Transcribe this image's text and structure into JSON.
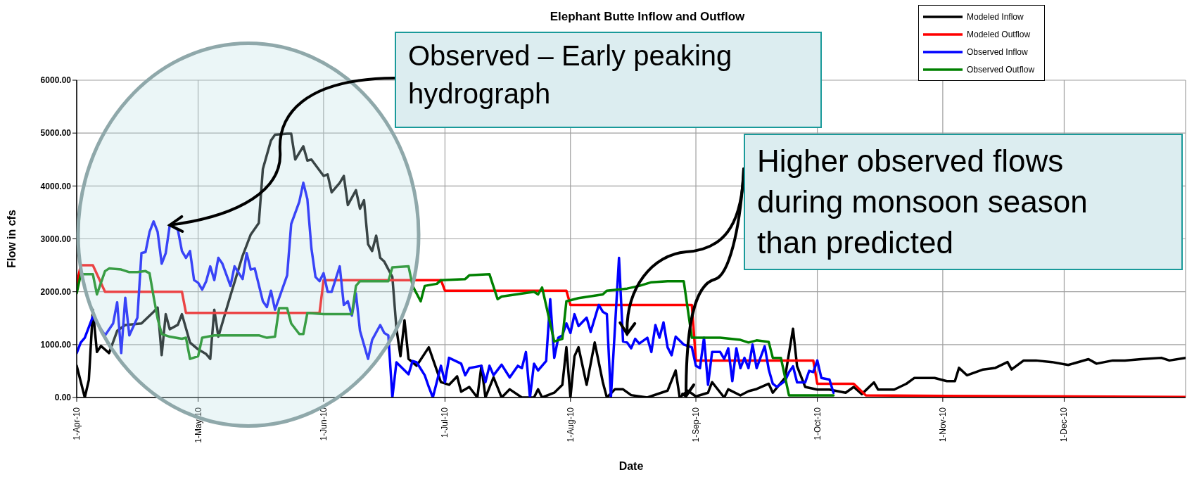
{
  "chart_data": {
    "type": "line",
    "title": "Elephant Butte Inflow and Outflow",
    "xlabel": "Date",
    "ylabel": "Flow in cfs",
    "xlim": [
      "2010-04-01",
      "2010-12-31"
    ],
    "xticks": [
      {
        "value": "2010-04-01",
        "label": "1-Apr-10"
      },
      {
        "value": "2010-05-01",
        "label": "1-May-10"
      },
      {
        "value": "2010-06-01",
        "label": "1-Jun-10"
      },
      {
        "value": "2010-07-01",
        "label": "1-Jul-10"
      },
      {
        "value": "2010-08-01",
        "label": "1-Aug-10"
      },
      {
        "value": "2010-09-01",
        "label": "1-Sep-10"
      },
      {
        "value": "2010-10-01",
        "label": "1-Oct-10"
      },
      {
        "value": "2010-11-01",
        "label": "1-Nov-10"
      },
      {
        "value": "2010-12-01",
        "label": "1-Dec-10"
      }
    ],
    "ylim": [
      0,
      6000
    ],
    "yticks": [
      {
        "value": 0,
        "label": "0.00"
      },
      {
        "value": 1000,
        "label": "1000.00"
      },
      {
        "value": 2000,
        "label": "2000.00"
      },
      {
        "value": 3000,
        "label": "3000.00"
      },
      {
        "value": 4000,
        "label": "4000.00"
      },
      {
        "value": 5000,
        "label": "5000.00"
      },
      {
        "value": 6000,
        "label": "6000.00"
      }
    ],
    "grid": true,
    "legend": "top right",
    "line_style": "solid",
    "marker": "none",
    "annotations": [
      {
        "text": "Observed – Early peaking hydrograph",
        "x": "2010-04-24",
        "y": 3260
      },
      {
        "text": "Higher observed flows during monsoon season than predicted",
        "x": "2010-08-15",
        "y": 1200
      }
    ],
    "series": [
      {
        "name": "Modeled Inflow",
        "color": "#000000",
        "x": [
          "2010-04-01",
          "2010-04-03",
          "2010-04-04",
          "2010-04-05",
          "2010-04-06",
          "2010-04-07",
          "2010-04-09",
          "2010-04-11",
          "2010-04-13",
          "2010-04-17",
          "2010-04-20",
          "2010-04-21",
          "2010-04-22",
          "2010-04-23",
          "2010-04-24",
          "2010-04-26",
          "2010-04-27",
          "2010-04-29",
          "2010-05-01",
          "2010-05-03",
          "2010-05-04",
          "2010-05-05",
          "2010-05-06",
          "2010-05-09",
          "2010-05-12",
          "2010-05-14",
          "2010-05-16",
          "2010-05-17",
          "2010-05-19",
          "2010-05-20",
          "2010-05-23",
          "2010-05-24",
          "2010-05-25",
          "2010-05-27",
          "2010-05-28",
          "2010-05-29",
          "2010-06-01",
          "2010-06-02",
          "2010-06-03",
          "2010-06-05",
          "2010-06-06",
          "2010-06-07",
          "2010-06-09",
          "2010-06-10",
          "2010-06-11",
          "2010-06-12",
          "2010-06-13",
          "2010-06-14",
          "2010-06-15",
          "2010-06-16",
          "2010-06-18",
          "2010-06-19",
          "2010-06-20",
          "2010-06-21",
          "2010-06-22",
          "2010-06-24",
          "2010-06-27",
          "2010-06-30",
          "2010-07-02",
          "2010-07-04",
          "2010-07-05",
          "2010-07-07",
          "2010-07-09",
          "2010-07-10",
          "2010-07-11",
          "2010-07-13",
          "2010-07-15",
          "2010-07-17",
          "2010-07-20",
          "2010-07-23",
          "2010-07-24",
          "2010-07-25",
          "2010-07-28",
          "2010-07-30",
          "2010-07-31",
          "2010-08-01",
          "2010-08-02",
          "2010-08-03",
          "2010-08-05",
          "2010-08-07",
          "2010-08-09",
          "2010-08-10",
          "2010-08-12",
          "2010-08-14",
          "2010-08-16",
          "2010-08-20",
          "2010-08-25",
          "2010-08-27",
          "2010-08-28",
          "2010-08-30",
          "2010-09-01",
          "2010-09-04",
          "2010-09-05",
          "2010-09-08",
          "2010-09-09",
          "2010-09-12",
          "2010-09-14",
          "2010-09-16",
          "2010-09-19",
          "2010-09-20",
          "2010-09-23",
          "2010-09-25",
          "2010-09-26",
          "2010-09-28",
          "2010-10-01",
          "2010-10-04",
          "2010-10-08",
          "2010-10-10",
          "2010-10-12",
          "2010-10-15",
          "2010-10-16",
          "2010-10-20",
          "2010-10-23",
          "2010-10-25",
          "2010-10-30",
          "2010-11-02",
          "2010-11-04",
          "2010-11-05",
          "2010-11-07",
          "2010-11-11",
          "2010-11-14",
          "2010-11-17",
          "2010-11-18",
          "2010-11-21",
          "2010-11-24",
          "2010-11-28",
          "2010-12-02",
          "2010-12-07",
          "2010-12-09",
          "2010-12-13",
          "2010-12-16",
          "2010-12-20",
          "2010-12-25",
          "2010-12-27",
          "2010-12-31"
        ],
        "values": [
          600,
          0,
          330,
          1660,
          860,
          975,
          840,
          1260,
          1370,
          1400,
          1620,
          1700,
          800,
          1575,
          1290,
          1375,
          1575,
          1040,
          910,
          820,
          730,
          1660,
          1150,
          1930,
          2680,
          3080,
          3300,
          4320,
          4860,
          4970,
          4990,
          4990,
          4500,
          4750,
          4480,
          4500,
          4190,
          4220,
          3880,
          4060,
          4190,
          3640,
          3920,
          3570,
          3730,
          2900,
          2770,
          3060,
          2640,
          2570,
          2280,
          1310,
          780,
          1460,
          730,
          600,
          950,
          290,
          240,
          400,
          110,
          200,
          0,
          600,
          0,
          380,
          0,
          155,
          0,
          0,
          155,
          0,
          90,
          240,
          950,
          0,
          780,
          950,
          240,
          1040,
          290,
          0,
          155,
          155,
          45,
          0,
          130,
          510,
          0,
          130,
          20,
          90,
          290,
          0,
          155,
          40,
          120,
          160,
          260,
          90,
          370,
          1300,
          590,
          200,
          150,
          150,
          90,
          200,
          65,
          285,
          150,
          150,
          260,
          370,
          370,
          310,
          310,
          560,
          420,
          530,
          560,
          670,
          530,
          700,
          700,
          670,
          615,
          725,
          640,
          700,
          700,
          725,
          750,
          700,
          750
        ]
      },
      {
        "name": "Modeled Outflow",
        "color": "#ff0000",
        "x": [
          "2010-04-01",
          "2010-04-02",
          "2010-04-05",
          "2010-04-08",
          "2010-04-27",
          "2010-04-28",
          "2010-05-31",
          "2010-06-01",
          "2010-06-30",
          "2010-07-01",
          "2010-07-31",
          "2010-08-01",
          "2010-08-31",
          "2010-09-01",
          "2010-09-30",
          "2010-10-01",
          "2010-10-10",
          "2010-10-13",
          "2010-11-02",
          "2010-12-31"
        ],
        "values": [
          2130,
          2500,
          2500,
          2000,
          2000,
          1600,
          1600,
          2220,
          2220,
          2020,
          2020,
          1750,
          1750,
          700,
          700,
          260,
          260,
          40,
          30,
          10
        ]
      },
      {
        "name": "Observed Inflow",
        "color": "#0000ff",
        "x": [
          "2010-04-01",
          "2010-04-02",
          "2010-04-03",
          "2010-04-05",
          "2010-04-08",
          "2010-04-10",
          "2010-04-11",
          "2010-04-12",
          "2010-04-13",
          "2010-04-14",
          "2010-04-16",
          "2010-04-17",
          "2010-04-18",
          "2010-04-19",
          "2010-04-20",
          "2010-04-21",
          "2010-04-22",
          "2010-04-23",
          "2010-04-24",
          "2010-04-25",
          "2010-04-26",
          "2010-04-27",
          "2010-04-28",
          "2010-04-29",
          "2010-04-30",
          "2010-05-01",
          "2010-05-02",
          "2010-05-03",
          "2010-05-04",
          "2010-05-05",
          "2010-05-06",
          "2010-05-07",
          "2010-05-09",
          "2010-05-10",
          "2010-05-12",
          "2010-05-13",
          "2010-05-14",
          "2010-05-15",
          "2010-05-17",
          "2010-05-18",
          "2010-05-19",
          "2010-05-20",
          "2010-05-23",
          "2010-05-24",
          "2010-05-26",
          "2010-05-27",
          "2010-05-28",
          "2010-05-29",
          "2010-05-30",
          "2010-05-31",
          "2010-06-01",
          "2010-06-02",
          "2010-06-03",
          "2010-06-05",
          "2010-06-06",
          "2010-06-07",
          "2010-06-08",
          "2010-06-09",
          "2010-06-10",
          "2010-06-12",
          "2010-06-13",
          "2010-06-15",
          "2010-06-16",
          "2010-06-17",
          "2010-06-18",
          "2010-06-19",
          "2010-06-22",
          "2010-06-23",
          "2010-06-24",
          "2010-06-26",
          "2010-06-27",
          "2010-06-28",
          "2010-06-30",
          "2010-07-01",
          "2010-07-02",
          "2010-07-05",
          "2010-07-06",
          "2010-07-07",
          "2010-07-10",
          "2010-07-11",
          "2010-07-12",
          "2010-07-13",
          "2010-07-15",
          "2010-07-17",
          "2010-07-19",
          "2010-07-20",
          "2010-07-21",
          "2010-07-22",
          "2010-07-23",
          "2010-07-24",
          "2010-07-26",
          "2010-07-27",
          "2010-07-28",
          "2010-07-29",
          "2010-07-30",
          "2010-07-31",
          "2010-08-01",
          "2010-08-02",
          "2010-08-03",
          "2010-08-05",
          "2010-08-06",
          "2010-08-08",
          "2010-08-09",
          "2010-08-10",
          "2010-08-11",
          "2010-08-13",
          "2010-08-14",
          "2010-08-15",
          "2010-08-16",
          "2010-08-17",
          "2010-08-18",
          "2010-08-20",
          "2010-08-21",
          "2010-08-22",
          "2010-08-23",
          "2010-08-24",
          "2010-08-25",
          "2010-08-26",
          "2010-08-27",
          "2010-08-29",
          "2010-08-31",
          "2010-09-01",
          "2010-09-02",
          "2010-09-03",
          "2010-09-04",
          "2010-09-05",
          "2010-09-07",
          "2010-09-08",
          "2010-09-09",
          "2010-09-10",
          "2010-09-11",
          "2010-09-12",
          "2010-09-13",
          "2010-09-14",
          "2010-09-15",
          "2010-09-16",
          "2010-09-18",
          "2010-09-19",
          "2010-09-20",
          "2010-09-21",
          "2010-09-23",
          "2010-09-24",
          "2010-09-25",
          "2010-09-26",
          "2010-09-28",
          "2010-09-29",
          "2010-09-30",
          "2010-10-01",
          "2010-10-02",
          "2010-10-04",
          "2010-10-05"
        ],
        "values": [
          840,
          1040,
          1130,
          1530,
          1175,
          1400,
          1800,
          840,
          1885,
          1175,
          1510,
          2730,
          2750,
          3130,
          3330,
          3130,
          2530,
          2730,
          3260,
          3220,
          3170,
          2770,
          2640,
          2770,
          2220,
          2170,
          2040,
          2200,
          2480,
          2220,
          2640,
          2530,
          2110,
          2480,
          2240,
          2730,
          2420,
          2440,
          1820,
          1710,
          2020,
          1660,
          2310,
          3280,
          3700,
          4060,
          3750,
          2820,
          2280,
          2200,
          2350,
          2000,
          2000,
          2480,
          1750,
          1820,
          1550,
          1970,
          1260,
          730,
          1090,
          1370,
          1220,
          1175,
          0,
          665,
          440,
          690,
          665,
          420,
          200,
          0,
          600,
          290,
          750,
          640,
          420,
          555,
          600,
          290,
          600,
          420,
          620,
          380,
          600,
          555,
          860,
          0,
          640,
          510,
          690,
          1860,
          750,
          1130,
          1175,
          1400,
          1220,
          1575,
          1350,
          1510,
          1240,
          1750,
          1620,
          1575,
          0,
          2640,
          1060,
          1040,
          930,
          1110,
          1020,
          1130,
          860,
          1370,
          1130,
          1420,
          950,
          800,
          1150,
          1000,
          950,
          600,
          555,
          1130,
          240,
          860,
          860,
          730,
          930,
          310,
          930,
          555,
          750,
          555,
          1000,
          555,
          970,
          530,
          260,
          200,
          310,
          480,
          590,
          285,
          285,
          505,
          480,
          700,
          370,
          340,
          90
        ]
      },
      {
        "name": "Observed Outflow",
        "color": "#008000",
        "x": [
          "2010-04-01",
          "2010-04-02",
          "2010-04-05",
          "2010-04-06",
          "2010-04-08",
          "2010-04-09",
          "2010-04-12",
          "2010-04-14",
          "2010-04-16",
          "2010-04-18",
          "2010-04-19",
          "2010-04-20",
          "2010-04-21",
          "2010-04-22",
          "2010-04-24",
          "2010-04-27",
          "2010-04-28",
          "2010-04-29",
          "2010-05-01",
          "2010-05-02",
          "2010-05-05",
          "2010-05-10",
          "2010-05-16",
          "2010-05-18",
          "2010-05-20",
          "2010-05-21",
          "2010-05-23",
          "2010-05-24",
          "2010-05-26",
          "2010-05-27",
          "2010-05-28",
          "2010-06-01",
          "2010-06-05",
          "2010-06-08",
          "2010-06-09",
          "2010-06-10",
          "2010-06-17",
          "2010-06-18",
          "2010-06-22",
          "2010-06-23",
          "2010-06-25",
          "2010-06-26",
          "2010-06-29",
          "2010-06-30",
          "2010-07-06",
          "2010-07-07",
          "2010-07-12",
          "2010-07-14",
          "2010-07-15",
          "2010-07-23",
          "2010-07-24",
          "2010-07-25",
          "2010-07-28",
          "2010-07-30",
          "2010-07-31",
          "2010-08-03",
          "2010-08-09",
          "2010-08-10",
          "2010-08-15",
          "2010-08-18",
          "2010-08-21",
          "2010-08-25",
          "2010-08-29",
          "2010-08-31",
          "2010-09-07",
          "2010-09-12",
          "2010-09-14",
          "2010-09-16",
          "2010-09-19",
          "2010-09-20",
          "2010-09-22",
          "2010-09-24",
          "2010-10-01",
          "2010-10-05"
        ],
        "values": [
          1970,
          2330,
          2330,
          1950,
          2390,
          2440,
          2420,
          2370,
          2370,
          2390,
          2350,
          1910,
          1490,
          1200,
          1150,
          1110,
          1130,
          730,
          780,
          1130,
          1175,
          1175,
          1175,
          1130,
          1150,
          1690,
          1690,
          1400,
          1200,
          1200,
          1600,
          1575,
          1575,
          1575,
          2110,
          2200,
          2200,
          2460,
          2480,
          2110,
          1820,
          2110,
          2150,
          2220,
          2240,
          2310,
          2330,
          1860,
          1910,
          2000,
          1950,
          2080,
          1060,
          1110,
          1820,
          1880,
          1950,
          2020,
          2060,
          2110,
          2180,
          2200,
          2200,
          1130,
          1130,
          1090,
          1040,
          1080,
          1050,
          750,
          750,
          40,
          40,
          40
        ]
      }
    ]
  }
}
